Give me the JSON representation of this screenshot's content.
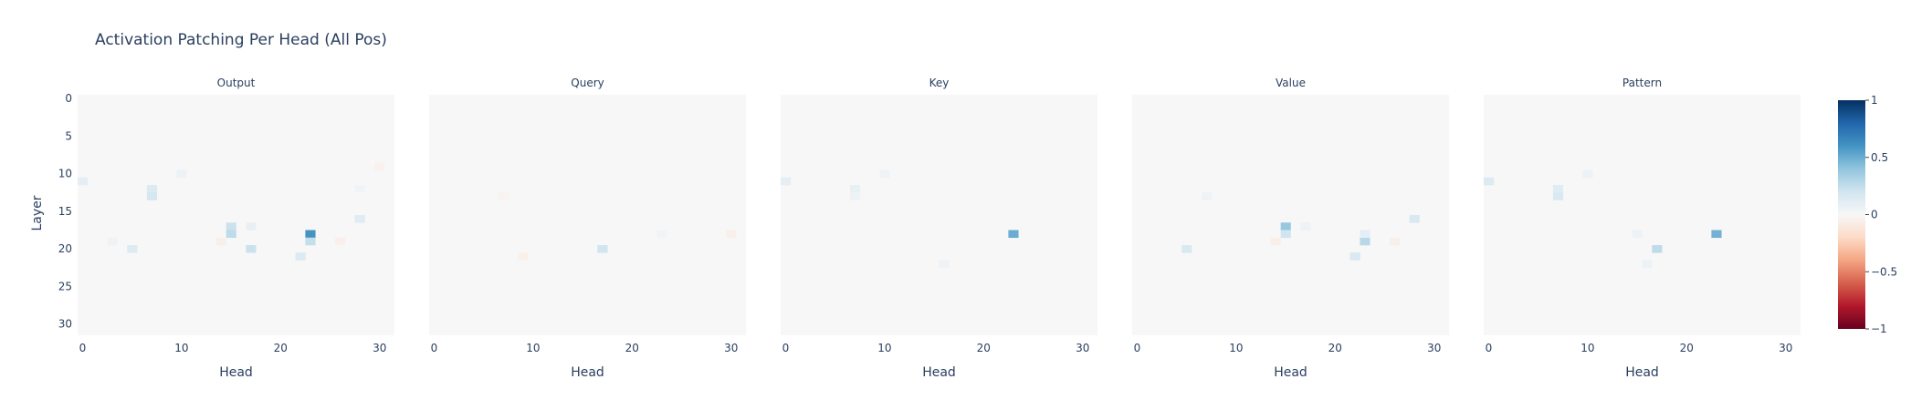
{
  "title": "Activation Patching Per Head (All Pos)",
  "chart_data": {
    "type": "heatmap",
    "title": "Activation Patching Per Head (All Pos)",
    "ylabel": "Layer",
    "xlabel": "Head",
    "n_layers": 32,
    "n_heads": 32,
    "x_ticks": [
      0,
      10,
      20,
      30
    ],
    "y_ticks": [
      0,
      5,
      10,
      15,
      20,
      25,
      30
    ],
    "colorscale": [
      "#67001f",
      "#b2182b",
      "#d6604d",
      "#f4a582",
      "#fddbc7",
      "#f7f7f7",
      "#d1e5f0",
      "#92c5de",
      "#4393c3",
      "#2166ac",
      "#053061"
    ],
    "background_color": "#f7f7f7",
    "zmin": -1,
    "zmax": 1,
    "colorbar_ticks": [
      1,
      0.5,
      0,
      -0.5,
      -1
    ],
    "colorbar_tick_labels": [
      "1",
      "0.5",
      "0",
      "−0.5",
      "−1"
    ],
    "panels": [
      {
        "name": "Output",
        "xlabel": "Head",
        "cells": [
          {
            "layer": 11,
            "head": 0,
            "value": 0.1
          },
          {
            "layer": 12,
            "head": 7,
            "value": 0.14
          },
          {
            "layer": 13,
            "head": 7,
            "value": 0.18
          },
          {
            "layer": 10,
            "head": 10,
            "value": 0.06
          },
          {
            "layer": 17,
            "head": 15,
            "value": 0.22
          },
          {
            "layer": 18,
            "head": 15,
            "value": 0.26
          },
          {
            "layer": 17,
            "head": 17,
            "value": 0.08
          },
          {
            "layer": 18,
            "head": 23,
            "value": 0.6
          },
          {
            "layer": 19,
            "head": 23,
            "value": 0.24
          },
          {
            "layer": 20,
            "head": 5,
            "value": 0.14
          },
          {
            "layer": 20,
            "head": 17,
            "value": 0.22
          },
          {
            "layer": 21,
            "head": 22,
            "value": 0.14
          },
          {
            "layer": 19,
            "head": 14,
            "value": -0.06
          },
          {
            "layer": 19,
            "head": 26,
            "value": -0.05
          },
          {
            "layer": 16,
            "head": 28,
            "value": 0.12
          },
          {
            "layer": 9,
            "head": 30,
            "value": -0.04
          },
          {
            "layer": 19,
            "head": 3,
            "value": 0.04
          },
          {
            "layer": 12,
            "head": 28,
            "value": 0.03
          }
        ]
      },
      {
        "name": "Query",
        "xlabel": "Head",
        "cells": [
          {
            "layer": 20,
            "head": 17,
            "value": 0.2
          },
          {
            "layer": 21,
            "head": 9,
            "value": -0.05
          },
          {
            "layer": 18,
            "head": 30,
            "value": -0.05
          },
          {
            "layer": 13,
            "head": 7,
            "value": -0.03
          },
          {
            "layer": 18,
            "head": 23,
            "value": 0.03
          }
        ]
      },
      {
        "name": "Key",
        "xlabel": "Head",
        "cells": [
          {
            "layer": 11,
            "head": 0,
            "value": 0.1
          },
          {
            "layer": 12,
            "head": 7,
            "value": 0.08
          },
          {
            "layer": 13,
            "head": 7,
            "value": 0.06
          },
          {
            "layer": 18,
            "head": 23,
            "value": 0.5
          },
          {
            "layer": 10,
            "head": 10,
            "value": 0.04
          },
          {
            "layer": 22,
            "head": 16,
            "value": 0.04
          }
        ]
      },
      {
        "name": "Value",
        "xlabel": "Head",
        "cells": [
          {
            "layer": 17,
            "head": 15,
            "value": 0.38
          },
          {
            "layer": 18,
            "head": 15,
            "value": 0.2
          },
          {
            "layer": 17,
            "head": 17,
            "value": 0.06
          },
          {
            "layer": 19,
            "head": 23,
            "value": 0.28
          },
          {
            "layer": 18,
            "head": 23,
            "value": 0.1
          },
          {
            "layer": 20,
            "head": 5,
            "value": 0.16
          },
          {
            "layer": 21,
            "head": 22,
            "value": 0.16
          },
          {
            "layer": 16,
            "head": 28,
            "value": 0.16
          },
          {
            "layer": 19,
            "head": 14,
            "value": -0.06
          },
          {
            "layer": 19,
            "head": 26,
            "value": -0.06
          },
          {
            "layer": 13,
            "head": 7,
            "value": 0.04
          }
        ]
      },
      {
        "name": "Pattern",
        "xlabel": "Head",
        "cells": [
          {
            "layer": 11,
            "head": 0,
            "value": 0.14
          },
          {
            "layer": 12,
            "head": 7,
            "value": 0.12
          },
          {
            "layer": 13,
            "head": 7,
            "value": 0.16
          },
          {
            "layer": 10,
            "head": 10,
            "value": 0.06
          },
          {
            "layer": 18,
            "head": 23,
            "value": 0.48
          },
          {
            "layer": 20,
            "head": 17,
            "value": 0.26
          },
          {
            "layer": 18,
            "head": 15,
            "value": 0.06
          },
          {
            "layer": 22,
            "head": 16,
            "value": 0.06
          }
        ]
      }
    ]
  }
}
